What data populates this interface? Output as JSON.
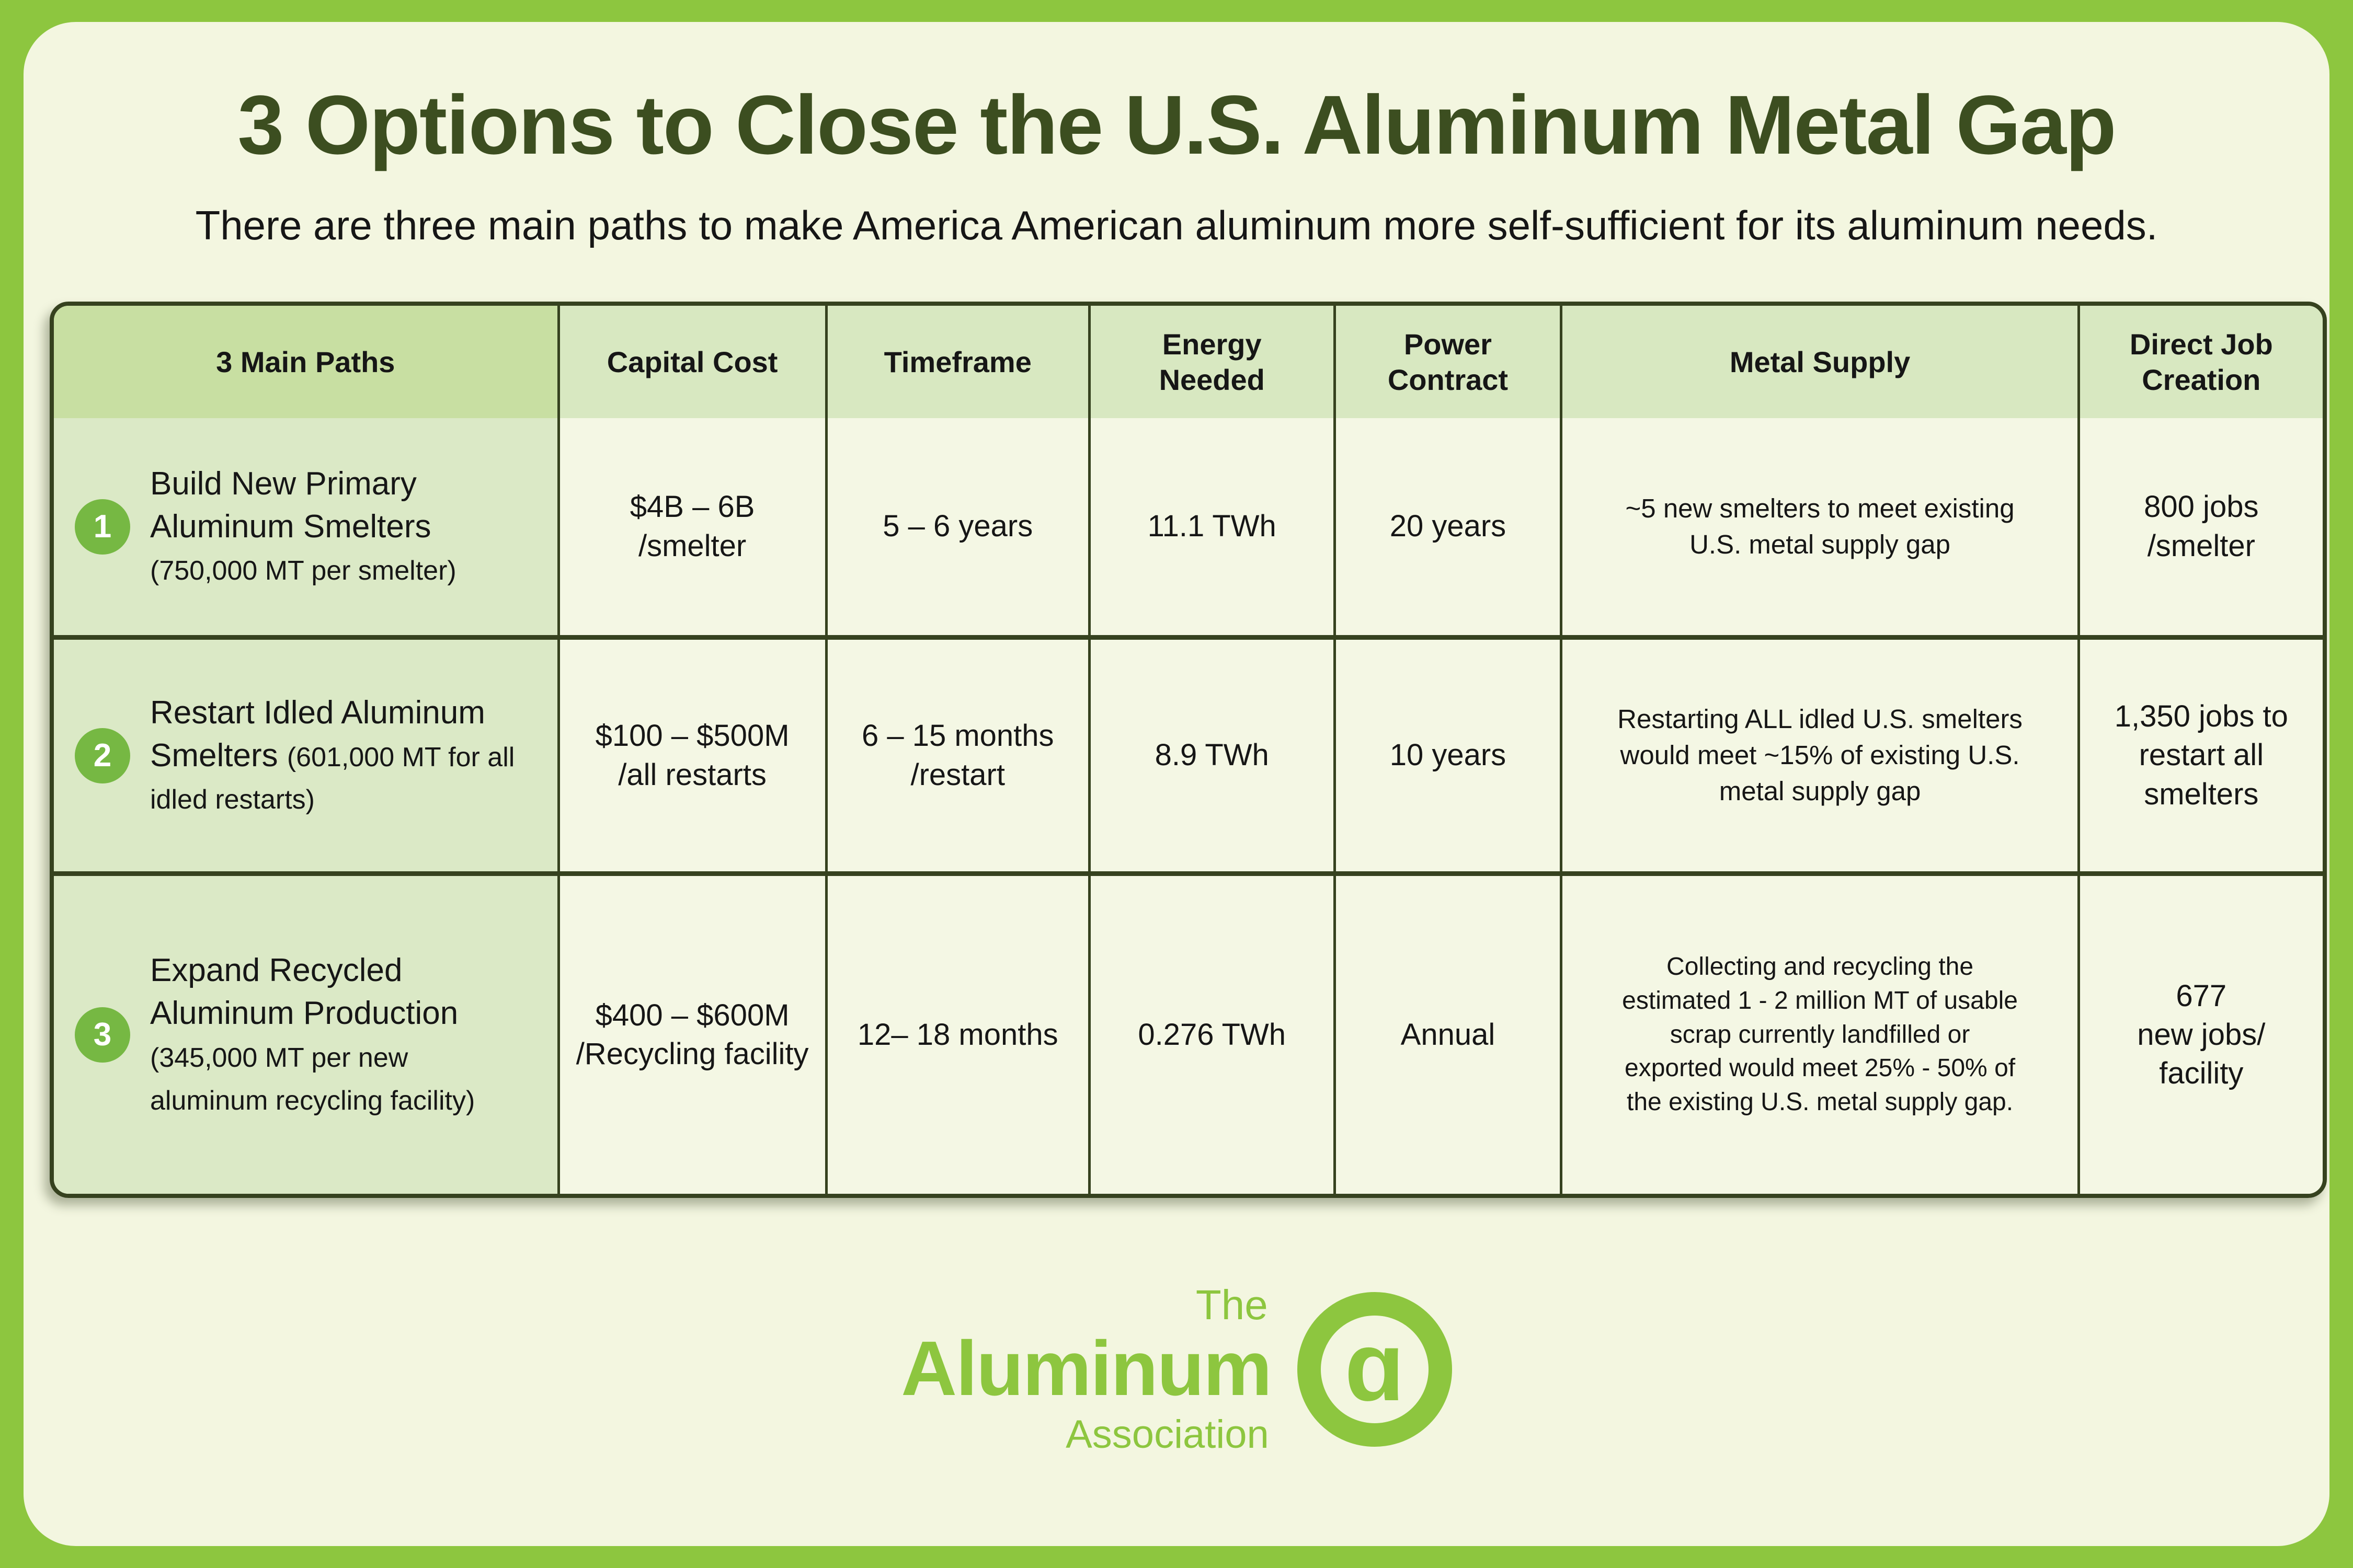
{
  "page": {
    "title": "3 Options to Close the U.S. Aluminum Metal Gap",
    "subtitle": "There are three main paths to make America American aluminum more self-sufficient for its aluminum needs."
  },
  "colors": {
    "frame_green": "#8dc63f",
    "panel_background": "#f3f6e0",
    "title_green": "#3c4e20",
    "header_first_col_bg": "#c8dfa2",
    "header_bg": "#d8e8c1",
    "first_col_bg": "#dbe9c6",
    "cell_bg": "#f4f7e4",
    "grid_line": "#36421f",
    "number_circle_green": "#76b843",
    "logo_green": "#8dc63f"
  },
  "table": {
    "headers": {
      "paths": "3 Main Paths",
      "capital": "Capital Cost",
      "timeframe": "Timeframe",
      "energy": "Energy Needed",
      "power": "Power Contract",
      "metal": "Metal Supply",
      "jobs": "Direct Job Creation"
    },
    "rows": [
      {
        "num": "1",
        "path_title": "Build New Primary Aluminum Smelters",
        "path_note": "(750,000 MT per smelter)",
        "capital_l1": "$4B – 6B",
        "capital_l2": "/smelter",
        "timeframe_l1": "5 – 6 years",
        "timeframe_l2": "",
        "energy": "11.1 TWh",
        "power": "20 years",
        "metal": "~5 new smelters to meet existing U.S. metal supply gap",
        "jobs_l1": "800 jobs",
        "jobs_l2": "/smelter"
      },
      {
        "num": "2",
        "path_title": "Restart Idled Aluminum Smelters",
        "path_note": "(601,000 MT for all idled restarts)",
        "capital_l1": "$100 – $500M",
        "capital_l2": "/all restarts",
        "timeframe_l1": "6 – 15 months",
        "timeframe_l2": "/restart",
        "energy": "8.9 TWh",
        "power": "10 years",
        "metal": "Restarting ALL idled U.S. smelters would meet ~15% of existing U.S. metal supply gap",
        "jobs_l1": "1,350 jobs to restart all smelters",
        "jobs_l2": ""
      },
      {
        "num": "3",
        "path_title": "Expand Recycled Aluminum Production",
        "path_note": "(345,000 MT per new aluminum recycling facility)",
        "capital_l1": "$400 – $600M",
        "capital_l2": "/Recycling facility",
        "timeframe_l1": "12– 18 months",
        "timeframe_l2": "",
        "energy": "0.276 TWh",
        "power": "Annual",
        "metal": "Collecting and recycling the estimated 1 - 2 million MT of usable scrap currently landfilled or exported would meet 25% - 50% of the existing U.S. metal supply gap.",
        "jobs_l1": "677",
        "jobs_l2": "new jobs/ facility"
      }
    ]
  },
  "logo": {
    "the": "The",
    "aluminum": "Aluminum",
    "association": "Association",
    "mark_letter": "ɑ"
  }
}
